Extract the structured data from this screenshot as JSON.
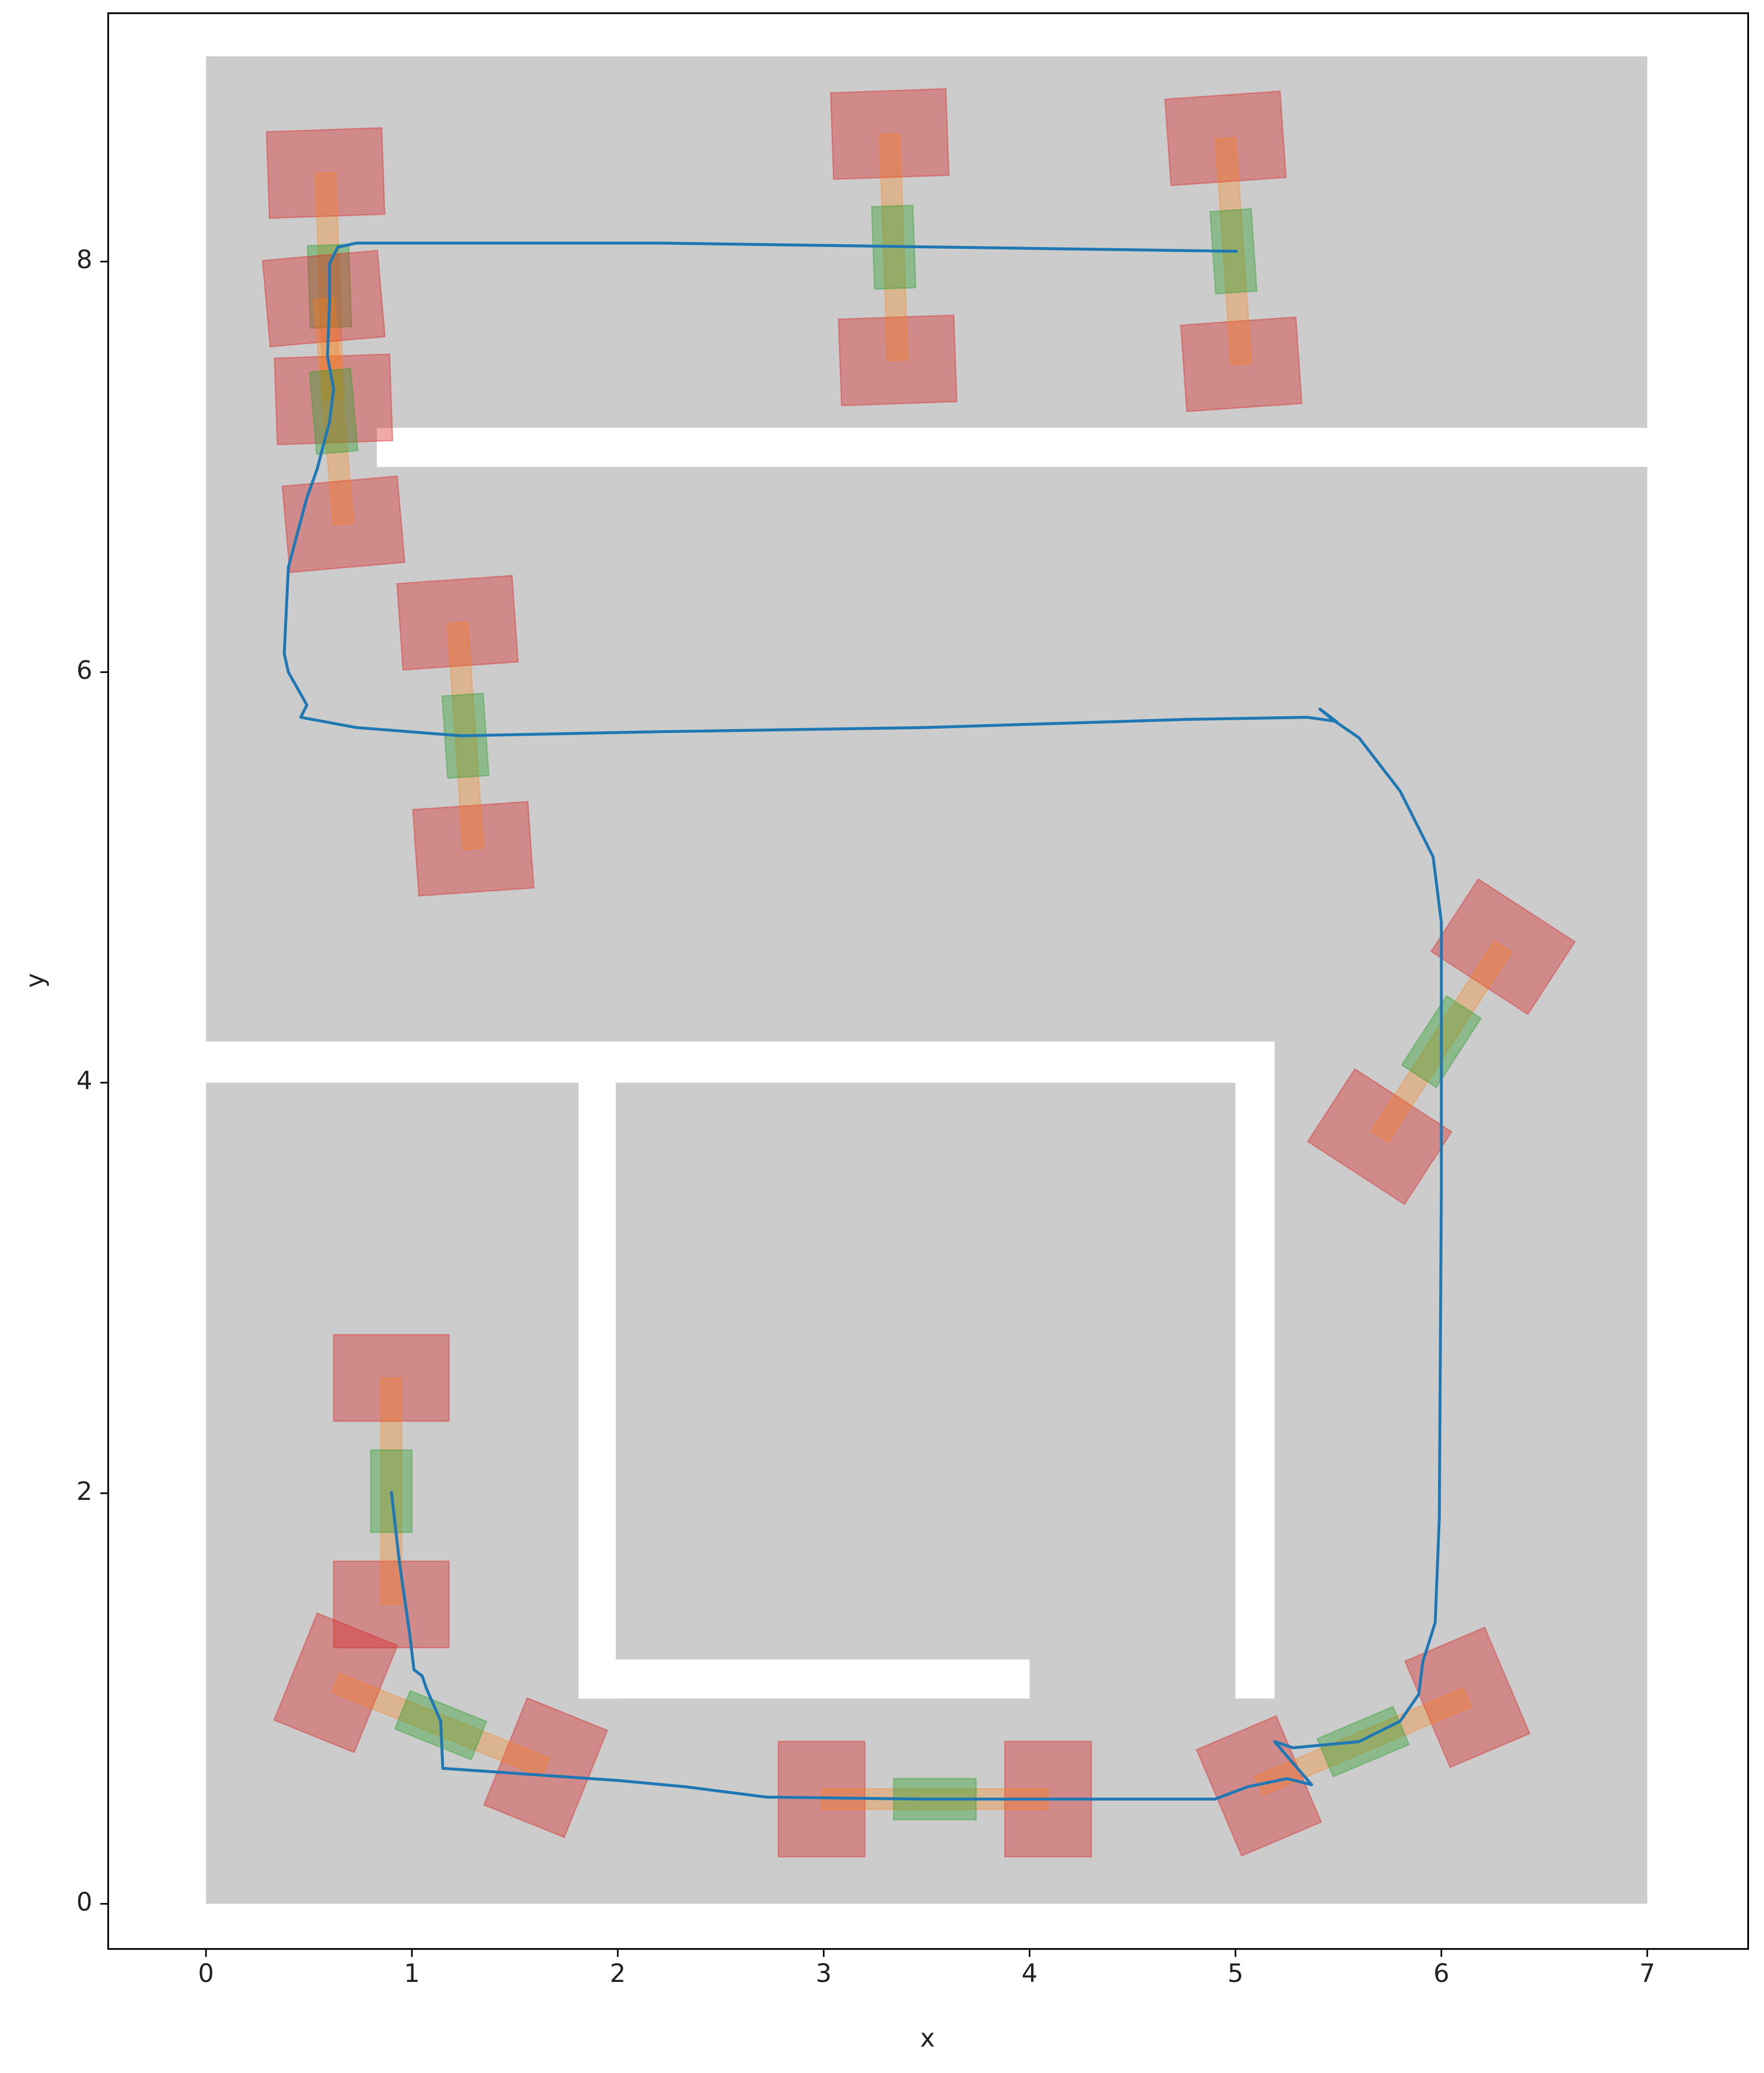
{
  "chart_data": {
    "type": "line",
    "x_label": "x",
    "y_label": "y",
    "xlim": [
      -0.475,
      7.49
    ],
    "ylim": [
      -0.22,
      9.21
    ],
    "xticks": [
      0,
      1,
      2,
      3,
      4,
      5,
      6,
      7
    ],
    "yticks": [
      0,
      2,
      4,
      6,
      8
    ],
    "map_color": "#cccccc",
    "wall_color": "#ffffff",
    "free_space": {
      "x": [
        0,
        7
      ],
      "y": [
        0,
        9
      ]
    },
    "walls": [
      {
        "x": [
          0.83,
          7
        ],
        "y": [
          7.0,
          7.19
        ]
      },
      {
        "x": [
          0,
          5.19
        ],
        "y": [
          4.0,
          4.2
        ]
      },
      {
        "x": [
          1.81,
          1.99
        ],
        "y": [
          1.0,
          4.0
        ]
      },
      {
        "x": [
          1.81,
          4.0
        ],
        "y": [
          1.0,
          1.19
        ]
      },
      {
        "x": [
          5.0,
          5.19
        ],
        "y": [
          1.0,
          4.2
        ]
      }
    ],
    "robot_colors": {
      "end": "#d62728",
      "link": "#ff7f0e",
      "body": "#2ca02c"
    },
    "robots": [
      {
        "x": 0.6,
        "y": 7.88,
        "angle": 92
      },
      {
        "x": 0.62,
        "y": 7.27,
        "angle": 95
      },
      {
        "x": 3.34,
        "y": 8.07,
        "angle": 92
      },
      {
        "x": 4.99,
        "y": 8.05,
        "angle": 94
      },
      {
        "x": 1.26,
        "y": 5.69,
        "angle": 94
      },
      {
        "x": 6.0,
        "y": 4.2,
        "angle": 57
      },
      {
        "x": 0.9,
        "y": 2.01,
        "angle": 90
      },
      {
        "x": 1.14,
        "y": 0.87,
        "angle": -22
      },
      {
        "x": 3.54,
        "y": 0.51,
        "angle": 0
      },
      {
        "x": 5.62,
        "y": 0.79,
        "angle": 23
      }
    ],
    "series": [
      {
        "color": "#1f77b4",
        "x": [
          0.9,
          0.94,
          0.99,
          1.01,
          1.05,
          1.07,
          1.14,
          1.15,
          1.44,
          2.01,
          2.33,
          2.72,
          3.49,
          4.9,
          5.06,
          5.25,
          5.37,
          5.19,
          5.28,
          5.6,
          5.8,
          5.89,
          5.91,
          5.97,
          5.99,
          6.0,
          6.0,
          5.96,
          5.8,
          5.6,
          5.47,
          5.41,
          5.49,
          5.35,
          4.77,
          3.49,
          2.21,
          1.24,
          0.73,
          0.46,
          0.49,
          0.4,
          0.38,
          0.4,
          0.49,
          0.54,
          0.6,
          0.62,
          0.59,
          0.6,
          0.6,
          0.64,
          0.73,
          2.21,
          5.01
        ],
        "values": [
          2.01,
          1.66,
          1.31,
          1.14,
          1.11,
          1.05,
          0.89,
          0.66,
          0.64,
          0.6,
          0.57,
          0.52,
          0.51,
          0.51,
          0.57,
          0.61,
          0.58,
          0.79,
          0.76,
          0.79,
          0.89,
          1.02,
          1.18,
          1.37,
          1.88,
          3.49,
          4.78,
          5.1,
          5.42,
          5.68,
          5.77,
          5.82,
          5.76,
          5.78,
          5.77,
          5.73,
          5.71,
          5.69,
          5.73,
          5.78,
          5.84,
          6.0,
          6.09,
          6.51,
          6.85,
          6.99,
          7.22,
          7.38,
          7.54,
          7.8,
          7.99,
          8.07,
          8.09,
          8.09,
          8.05
        ]
      }
    ]
  }
}
